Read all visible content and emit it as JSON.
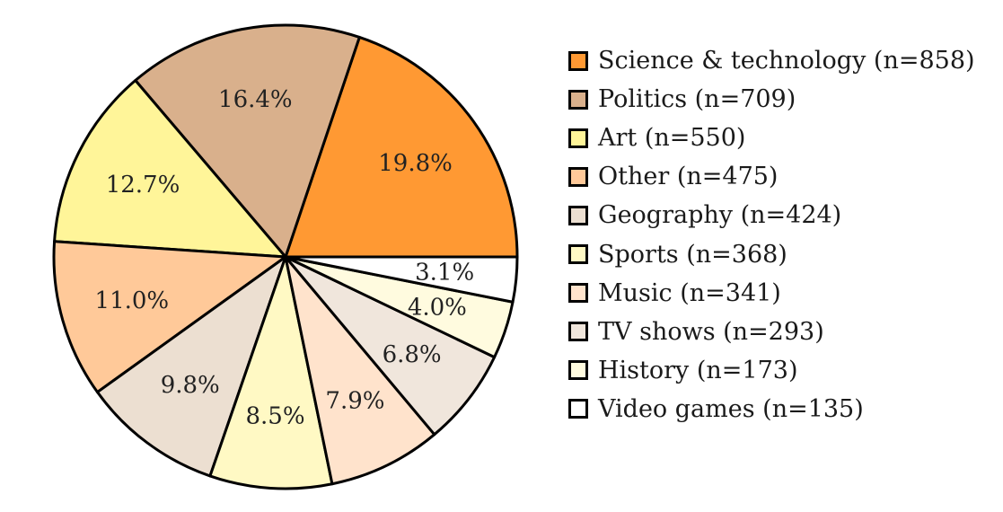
{
  "chart_data": {
    "type": "pie",
    "title": "",
    "start_angle_deg": 0,
    "direction": "counterclockwise",
    "legend_position": "right",
    "slices": [
      {
        "label": "Science & technology (n=858)",
        "value": 858,
        "percent_label": "19.8%",
        "color": "#ff9933"
      },
      {
        "label": "Politics (n=709)",
        "value": 709,
        "percent_label": "16.4%",
        "color": "#d9b08c"
      },
      {
        "label": "Art (n=550)",
        "value": 550,
        "percent_label": "12.7%",
        "color": "#fff599"
      },
      {
        "label": "Other (n=475)",
        "value": 475,
        "percent_label": "11.0%",
        "color": "#ffc999"
      },
      {
        "label": "Geography (n=424)",
        "value": 424,
        "percent_label": "9.8%",
        "color": "#ecdfd1"
      },
      {
        "label": "Sports (n=368)",
        "value": 368,
        "percent_label": "8.5%",
        "color": "#fff9c4"
      },
      {
        "label": "Music (n=341)",
        "value": 341,
        "percent_label": "7.9%",
        "color": "#ffe3cc"
      },
      {
        "label": "TV shows (n=293)",
        "value": 293,
        "percent_label": "6.8%",
        "color": "#f0e6dc"
      },
      {
        "label": "History (n=173)",
        "value": 173,
        "percent_label": "4.0%",
        "color": "#fffbdf"
      },
      {
        "label": "Video games (n=135)",
        "value": 135,
        "percent_label": "3.1%",
        "color": "#ffffff"
      }
    ]
  }
}
